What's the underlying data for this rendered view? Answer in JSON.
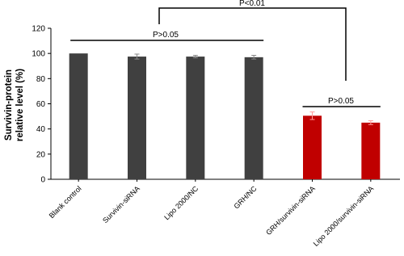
{
  "chart_data": {
    "type": "bar",
    "y_label": [
      "Survivin-protein",
      "relative level (%)"
    ],
    "categories": [
      "Blank control",
      "Survivin-siRNA",
      "Lipo 2000/NC",
      "GRH/NC",
      "GRH/survivin-siRNA",
      "Lipo 2000/survivin-siRNA"
    ],
    "values": [
      100,
      97.5,
      97.5,
      97,
      50.5,
      45
    ],
    "errors": [
      0,
      2,
      1,
      1.5,
      3,
      1.5
    ],
    "colors": [
      "#404040",
      "#404040",
      "#404040",
      "#404040",
      "#c00000",
      "#c00000"
    ],
    "ylim": [
      0,
      120
    ],
    "yticks": [
      0,
      20,
      40,
      60,
      80,
      100,
      120
    ],
    "annotations": [
      "P<0.01",
      "P>0.05",
      "P>0.05"
    ]
  }
}
